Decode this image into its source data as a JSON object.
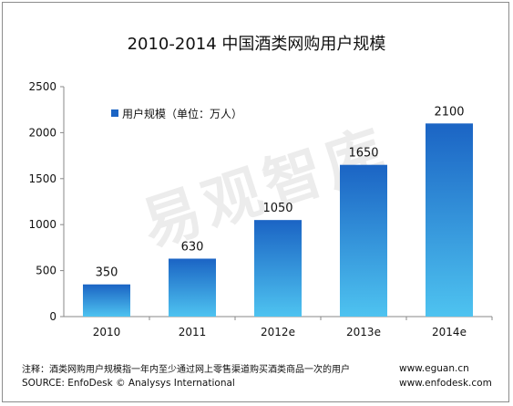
{
  "chart_data": {
    "type": "bar",
    "title": "2010-2014 中国酒类网购用户规模",
    "categories": [
      "2010",
      "2011",
      "2012e",
      "2013e",
      "2014e"
    ],
    "series": [
      {
        "name": "用户规模（单位：万人）",
        "values": [
          350,
          630,
          1050,
          1650,
          2100
        ]
      }
    ],
    "data_labels": [
      "350",
      "630",
      "1050",
      "1650",
      "2100"
    ],
    "ylim": [
      0,
      2500
    ],
    "yticks": [
      "0",
      "500",
      "1000",
      "1500",
      "2000",
      "2500"
    ],
    "grid": false,
    "legend_position": "top-left",
    "colors": {
      "bar_top": "#1b64c4",
      "bar_bottom": "#4ec3f0"
    }
  },
  "footer": {
    "note": "注释：酒类网购用户规模指一年内至少通过网上零售渠道购买酒类商品一次的用户",
    "source": "SOURCE: EnfoDesk © Analysys International",
    "site1": "www.eguan.cn",
    "site2": "www.enfodesk.com"
  },
  "watermark": "易观智库"
}
